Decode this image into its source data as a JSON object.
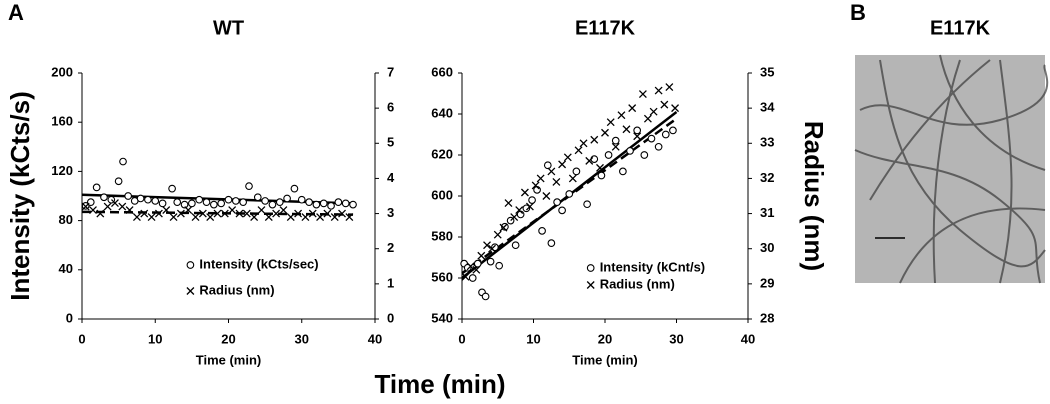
{
  "panel_labels": {
    "a": "A",
    "b": "B"
  },
  "shared_labels": {
    "y": "Intensity (kCts/s)",
    "x": "Time (min)",
    "y2": "Radius (nm)"
  },
  "image_panel": {
    "title": "E117K"
  },
  "chart_data": [
    {
      "type": "scatter",
      "title": "WT",
      "x_label": "Time (min)",
      "xlim": [
        0,
        40
      ],
      "xticks": [
        0,
        10,
        20,
        30,
        40
      ],
      "ylim": [
        0,
        200
      ],
      "yticks": [
        0,
        40,
        80,
        120,
        160,
        200
      ],
      "y2lim": [
        0,
        7
      ],
      "y2ticks": [
        0,
        1,
        2,
        3,
        4,
        5,
        6,
        7
      ],
      "legend": "lower-center",
      "series": [
        {
          "name": "Intensity (kCts/sec)",
          "marker": "circle",
          "color": "#000000",
          "x": [
            0.5,
            1.2,
            2,
            3,
            4,
            5,
            5.6,
            6.3,
            7.2,
            8,
            9,
            10,
            11,
            12.3,
            13,
            14,
            15,
            16,
            17,
            18,
            19,
            20,
            21,
            22,
            22.8,
            24,
            25,
            26,
            27,
            28,
            29,
            30,
            31,
            32,
            33,
            34,
            35,
            36,
            37
          ],
          "values": [
            92,
            95,
            107,
            99,
            97,
            112,
            128,
            100,
            96,
            98,
            97,
            96,
            94,
            106,
            95,
            93,
            94,
            97,
            95,
            93,
            94,
            97,
            96,
            95,
            108,
            99,
            96,
            93,
            95,
            98,
            106,
            97,
            95,
            93,
            94,
            92,
            95,
            94,
            93
          ]
        },
        {
          "name": "Radius (nm)",
          "marker": "cross",
          "color": "#000000",
          "axis": "y2",
          "x": [
            0.5,
            1.5,
            2.5,
            3.5,
            4.5,
            5.5,
            6.5,
            7.5,
            8.5,
            9.5,
            10.5,
            11.5,
            12.5,
            13.5,
            14.5,
            15.5,
            16.5,
            17.5,
            18.5,
            19.5,
            20.5,
            21.5,
            22.5,
            23.5,
            24.5,
            25.5,
            26.5,
            27.5,
            28.5,
            29.5,
            30.5,
            31.5,
            32.5,
            33.5,
            34.5,
            35.5,
            36.5
          ],
          "values": [
            3.2,
            3.1,
            3.0,
            3.2,
            3.3,
            3.2,
            3.1,
            2.9,
            3.0,
            2.9,
            3.0,
            3.1,
            2.9,
            3.0,
            3.1,
            2.9,
            3.0,
            2.9,
            3.0,
            3.0,
            3.1,
            3.0,
            3.0,
            2.9,
            3.1,
            2.9,
            3.0,
            3.1,
            2.9,
            3.0,
            2.9,
            3.0,
            2.9,
            3.0,
            2.9,
            3.0,
            2.9
          ]
        }
      ],
      "trendlines": [
        {
          "style": "solid",
          "x": [
            0,
            37
          ],
          "values": [
            101,
            94
          ]
        },
        {
          "style": "dashed",
          "axis": "y2",
          "x": [
            0,
            37
          ],
          "values": [
            3.05,
            2.97
          ]
        }
      ]
    },
    {
      "type": "scatter",
      "title": "E117K",
      "x_label": "Time (min)",
      "xlim": [
        0,
        40
      ],
      "xticks": [
        0,
        10,
        20,
        30,
        40
      ],
      "ylim": [
        540,
        660
      ],
      "yticks": [
        540,
        560,
        580,
        600,
        620,
        640,
        660
      ],
      "y2lim": [
        28,
        35
      ],
      "y2ticks": [
        28,
        29,
        30,
        31,
        32,
        33,
        34,
        35
      ],
      "legend": "lower-right",
      "series": [
        {
          "name": "Intensity (kCnt/s)",
          "marker": "circle",
          "color": "#000000",
          "x": [
            0.3,
            0.8,
            1.5,
            2.2,
            2.8,
            3.3,
            4,
            4.6,
            5.2,
            6,
            6.8,
            7.5,
            8.2,
            9,
            9.8,
            10.5,
            11.2,
            12,
            12.5,
            13.3,
            14,
            15,
            16,
            17.5,
            18.5,
            19.5,
            20.5,
            21.5,
            22.5,
            23.5,
            24.5,
            25.5,
            26.5,
            27.5,
            28.5,
            29.5
          ],
          "values": [
            567,
            565,
            560,
            567,
            553,
            551,
            568,
            575,
            566,
            585,
            588,
            576,
            591,
            594,
            598,
            603,
            583,
            615,
            577,
            597,
            593,
            601,
            612,
            596,
            618,
            610,
            620,
            627,
            612,
            622,
            632,
            620,
            628,
            624,
            630,
            632
          ]
        },
        {
          "name": "Radius (nm)",
          "marker": "cross",
          "color": "#000000",
          "axis": "y2",
          "x": [
            0.5,
            1.2,
            2,
            2.7,
            3.5,
            4.2,
            5,
            5.8,
            6.5,
            7.3,
            8,
            8.8,
            9.5,
            10.3,
            11,
            11.8,
            12.5,
            13.2,
            14,
            14.8,
            15.5,
            16.3,
            17,
            17.8,
            18.5,
            19.3,
            20,
            20.8,
            21.5,
            22.3,
            23,
            23.8,
            24.5,
            25.3,
            26,
            26.8,
            27.5,
            28.3,
            29,
            29.8
          ],
          "values": [
            29.2,
            29.5,
            29.4,
            29.8,
            30.1,
            30.0,
            30.4,
            30.6,
            31.3,
            30.9,
            31.1,
            31.6,
            31.2,
            31.8,
            32.0,
            31.5,
            32.2,
            31.9,
            32.4,
            32.6,
            32.0,
            32.8,
            33.0,
            32.5,
            33.1,
            32.3,
            33.3,
            33.6,
            32.9,
            33.8,
            33.4,
            34.0,
            33.2,
            34.4,
            33.7,
            33.9,
            34.5,
            34.1,
            34.6,
            34.0
          ]
        }
      ],
      "trendlines": [
        {
          "style": "solid",
          "x": [
            0,
            30
          ],
          "values": [
            560,
            641
          ]
        },
        {
          "style": "dashed",
          "axis": "y2",
          "x": [
            0,
            30
          ],
          "values": [
            29.3,
            33.7
          ]
        }
      ]
    }
  ]
}
